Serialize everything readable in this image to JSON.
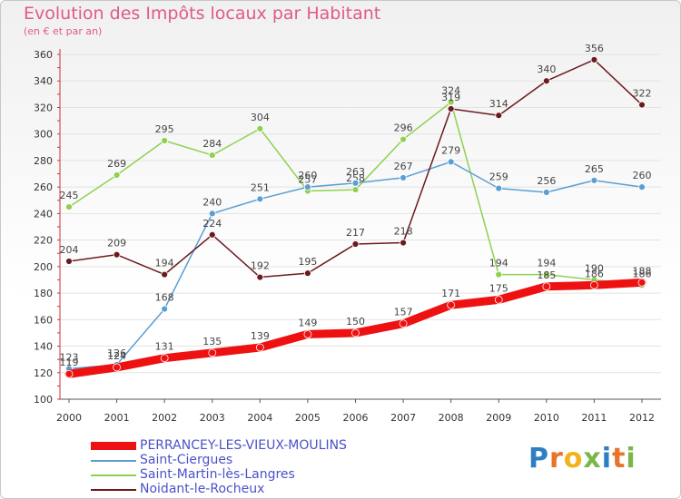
{
  "header": {
    "title": "Evolution des Impôts locaux par Habitant",
    "subtitle": "(en € et par an)"
  },
  "brand": {
    "name": "Proxiti",
    "letters": [
      "P",
      "r",
      "o",
      "x",
      "i",
      "t",
      "i"
    ]
  },
  "chart_data": {
    "type": "line",
    "title": "Evolution des Impôts locaux par Habitant",
    "subtitle": "(en € et par an)",
    "xlabel": "",
    "ylabel": "",
    "ylim": [
      100,
      360
    ],
    "yticks": [
      100,
      120,
      140,
      160,
      180,
      200,
      220,
      240,
      260,
      280,
      300,
      320,
      340,
      360
    ],
    "grid": true,
    "legend_position": "bottom-left",
    "x": [
      "2000",
      "2001",
      "2002",
      "2003",
      "2004",
      "2005",
      "2006",
      "2007",
      "2008",
      "2009",
      "2010",
      "2011",
      "2012"
    ],
    "series": [
      {
        "name": "Saint-Martin-lès-Langres",
        "color": "#8fd14f",
        "values": [
          245,
          269,
          295,
          284,
          304,
          257,
          258,
          296,
          324,
          194,
          194,
          190,
          186
        ],
        "labels": [
          "245",
          "269",
          "295",
          "284",
          "304",
          "257",
          "258",
          "296",
          "324",
          "194",
          "194",
          "190",
          "186"
        ]
      },
      {
        "name": "Saint-Ciergues",
        "color": "#5a9fd4",
        "values": [
          123,
          126,
          168,
          240,
          251,
          260,
          263,
          267,
          279,
          259,
          256,
          265,
          260
        ],
        "labels": [
          "123",
          "126",
          "168",
          "240",
          "251",
          "260",
          "263",
          "267",
          "279",
          "259",
          "256",
          "265",
          "260"
        ]
      },
      {
        "name": "Noidant-le-Rocheux",
        "color": "#6b1a1f",
        "values": [
          204,
          209,
          194,
          224,
          192,
          195,
          217,
          218,
          319,
          314,
          340,
          356,
          322
        ],
        "labels": [
          "204",
          "209",
          "194",
          "224",
          "192",
          "195",
          "217",
          "218",
          "319",
          "314",
          "340",
          "356",
          "322"
        ]
      },
      {
        "name": "PERRANCEY-LES-VIEUX-MOULINS",
        "color": "#ee1111",
        "values": [
          119,
          124,
          131,
          135,
          139,
          149,
          150,
          157,
          171,
          175,
          185,
          186,
          188
        ],
        "labels": [
          "119",
          "124",
          "131",
          "135",
          "139",
          "149",
          "150",
          "157",
          "171",
          "175",
          "185",
          "186",
          "188"
        ]
      }
    ]
  },
  "legend": {
    "items": [
      {
        "name": "PERRANCEY-LES-VIEUX-MOULINS",
        "color": "#ee1111",
        "thick": true
      },
      {
        "name": "Saint-Ciergues",
        "color": "#5a9fd4",
        "thick": false
      },
      {
        "name": "Saint-Martin-lès-Langres",
        "color": "#8fd14f",
        "thick": false
      },
      {
        "name": "Noidant-le-Rocheux",
        "color": "#6b1a1f",
        "thick": false
      }
    ]
  }
}
